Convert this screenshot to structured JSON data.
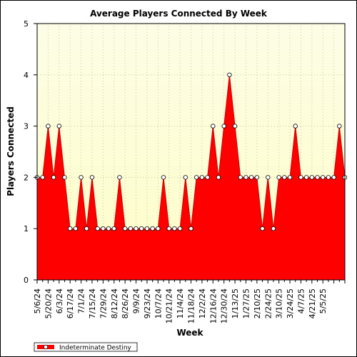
{
  "chart_data": {
    "type": "area",
    "title": "Average Players Connected By Week",
    "xlabel": "Week",
    "ylabel": "Players Connected",
    "ylim": [
      0,
      5
    ],
    "yticks": [
      "0",
      "1",
      "2",
      "3",
      "4",
      "5"
    ],
    "x_tick_labels": [
      "5/6/24",
      "5/20/24",
      "6/3/24",
      "6/17/24",
      "7/1/24",
      "7/15/24",
      "7/29/24",
      "8/12/24",
      "8/26/24",
      "9/9/24",
      "9/23/24",
      "10/7/24",
      "10/21/24",
      "11/4/24",
      "11/18/24",
      "12/2/24",
      "12/16/24",
      "12/30/24",
      "1/13/25",
      "1/27/25",
      "2/10/25",
      "2/24/25",
      "3/10/25",
      "3/24/25",
      "4/7/25",
      "4/21/25",
      "5/5/25"
    ],
    "grid": true,
    "legend_position": "bottom-left",
    "colors": {
      "fill": "#ff0000",
      "line": "#cc0000",
      "plot_bg_top": "#fdfde6",
      "plot_bg_bottom": "#fdfdc8",
      "grid": "#c8c8a0"
    },
    "series": [
      {
        "name": "Indeterminate Destiny",
        "values": [
          2,
          2,
          3,
          2,
          3,
          2,
          1,
          1,
          2,
          1,
          2,
          1,
          1,
          1,
          1,
          2,
          1,
          1,
          1,
          1,
          1,
          1,
          1,
          2,
          1,
          1,
          1,
          2,
          1,
          2,
          2,
          2,
          3,
          2,
          3,
          4,
          3,
          2,
          2,
          2,
          2,
          1,
          2,
          1,
          2,
          2,
          2,
          3,
          2,
          2,
          2,
          2,
          2,
          2,
          2,
          3,
          2
        ]
      }
    ]
  }
}
